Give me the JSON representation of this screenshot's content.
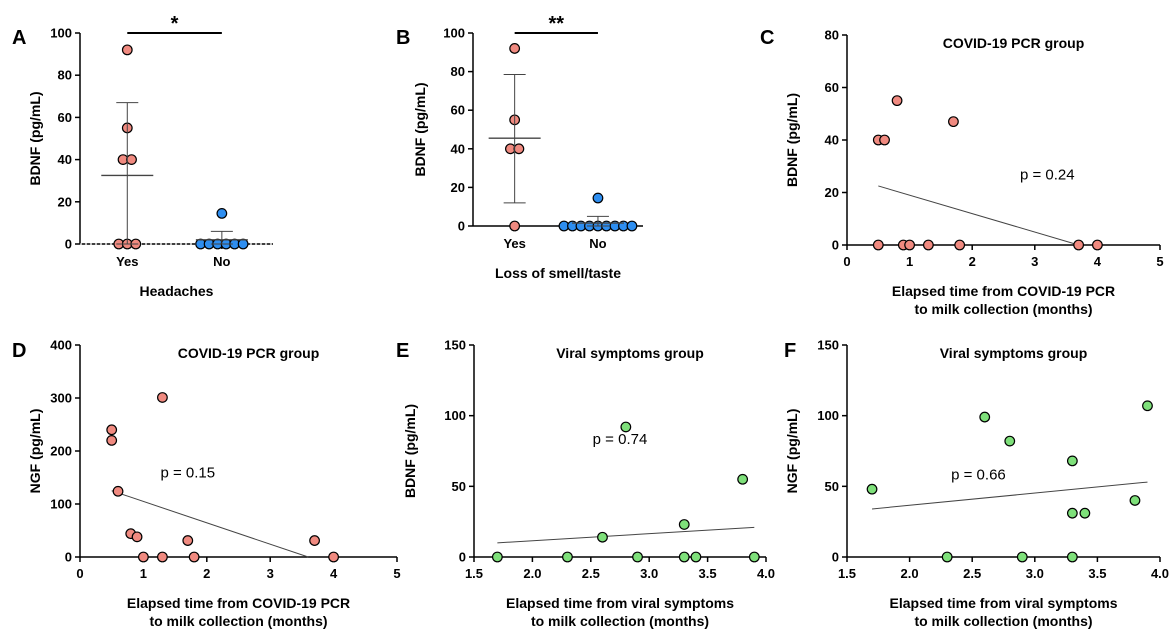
{
  "colors": {
    "red": "#f08a80",
    "blue": "#2e8ef0",
    "green": "#7ee07a",
    "stroke": "#000000",
    "line": "#444444"
  },
  "chart_data": [
    {
      "panel": "A",
      "type": "scatter",
      "categories": [
        "Yes",
        "No"
      ],
      "xlabel": "Headaches",
      "ylabel": "BDNF (pg/mL)",
      "ylim": [
        0,
        100
      ],
      "yticks": [
        "0",
        "20",
        "40",
        "60",
        "80",
        "100"
      ],
      "groups": [
        {
          "category": "Yes",
          "color": "#f08a80",
          "values": [
            92,
            55,
            40,
            40,
            0,
            0,
            0
          ],
          "mean": 32.5,
          "sd_upper": 67,
          "sd_lower": 0
        },
        {
          "category": "No",
          "color": "#2e8ef0",
          "values": [
            14.5,
            0,
            0,
            0,
            0,
            0,
            0
          ],
          "mean": 2,
          "sd_upper": 6,
          "sd_lower": 0
        }
      ],
      "significance": "*"
    },
    {
      "panel": "B",
      "type": "scatter",
      "categories": [
        "Yes",
        "No"
      ],
      "xlabel": "Loss of smell/taste",
      "ylabel": "BDNF (pg/mL)",
      "ylim": [
        0,
        100
      ],
      "yticks": [
        "0",
        "20",
        "40",
        "60",
        "80",
        "100"
      ],
      "groups": [
        {
          "category": "Yes",
          "color": "#f08a80",
          "values": [
            92,
            55,
            40,
            40,
            0
          ],
          "mean": 45.5,
          "sd_upper": 78.5,
          "sd_lower": 12
        },
        {
          "category": "No",
          "color": "#2e8ef0",
          "values": [
            14.5,
            0,
            0,
            0,
            0,
            0,
            0,
            0,
            0,
            0
          ],
          "mean": 1.5,
          "sd_upper": 5,
          "sd_lower": 0
        }
      ],
      "significance": "**"
    },
    {
      "panel": "C",
      "type": "scatter",
      "title": "COVID-19 PCR group",
      "xlabel": [
        "Elapsed time from COVID-19 PCR",
        "to milk collection (months)"
      ],
      "ylabel": "BDNF (pg/mL)",
      "xlim": [
        0,
        5
      ],
      "ylim": [
        0,
        80
      ],
      "xticks": [
        "0",
        "1",
        "2",
        "3",
        "4",
        "5"
      ],
      "yticks": [
        "0",
        "20",
        "40",
        "60",
        "80"
      ],
      "color": "#f08a80",
      "x": [
        0.5,
        0.6,
        0.8,
        1.7,
        0.5,
        0.9,
        1.0,
        1.3,
        1.8,
        3.7,
        4.0
      ],
      "y": [
        40,
        40,
        55,
        47,
        0,
        0,
        0,
        0,
        0,
        0,
        0
      ],
      "fit": {
        "x": [
          0.5,
          3.7
        ],
        "y": [
          22.5,
          0
        ]
      },
      "annotation": "p = 0.24"
    },
    {
      "panel": "D",
      "type": "scatter",
      "title": "COVID-19 PCR group",
      "xlabel": [
        "Elapsed time from COVID-19 PCR",
        "to milk collection (months)"
      ],
      "ylabel": "NGF (pg/mL)",
      "xlim": [
        0,
        5
      ],
      "ylim": [
        0,
        400
      ],
      "xticks": [
        "0",
        "1",
        "2",
        "3",
        "4",
        "5"
      ],
      "yticks": [
        "0",
        "100",
        "200",
        "300",
        "400"
      ],
      "color": "#f08a80",
      "x": [
        0.5,
        0.5,
        0.6,
        0.8,
        0.9,
        1.0,
        1.3,
        1.3,
        1.7,
        1.8,
        3.7,
        4.0
      ],
      "y": [
        240,
        220,
        124,
        44,
        38,
        0,
        301,
        0,
        31,
        0,
        31,
        0
      ],
      "fit": {
        "x": [
          0.5,
          3.6
        ],
        "y": [
          125,
          0
        ]
      },
      "annotation": "p = 0.15"
    },
    {
      "panel": "E",
      "type": "scatter",
      "title": "Viral symptoms group",
      "xlabel": [
        "Elapsed time from viral symptoms",
        "to milk collection (months)"
      ],
      "ylabel": "BDNF (pg/mL)",
      "xlim": [
        1.5,
        4.0
      ],
      "ylim": [
        0,
        150
      ],
      "xticks": [
        "1.5",
        "2.0",
        "2.5",
        "3.0",
        "3.5",
        "4.0"
      ],
      "yticks": [
        "0",
        "50",
        "100",
        "150"
      ],
      "color": "#7ee07a",
      "x": [
        1.7,
        2.3,
        2.6,
        2.8,
        2.9,
        3.3,
        3.3,
        3.4,
        3.8,
        3.9
      ],
      "y": [
        0,
        0,
        14,
        92,
        0,
        23,
        0,
        0,
        55,
        0
      ],
      "fit": {
        "x": [
          1.7,
          3.9
        ],
        "y": [
          10,
          21
        ]
      },
      "annotation": "p = 0.74"
    },
    {
      "panel": "F",
      "type": "scatter",
      "title": "Viral symptoms group",
      "xlabel": [
        "Elapsed time from viral symptoms",
        "to milk collection (months)"
      ],
      "ylabel": "NGF (pg/mL)",
      "xlim": [
        1.5,
        4.0
      ],
      "ylim": [
        0,
        150
      ],
      "xticks": [
        "1.5",
        "2.0",
        "2.5",
        "3.0",
        "3.5",
        "4.0"
      ],
      "yticks": [
        "0",
        "50",
        "100",
        "150"
      ],
      "color": "#7ee07a",
      "x": [
        1.7,
        2.3,
        2.6,
        2.8,
        2.9,
        3.3,
        3.3,
        3.3,
        3.4,
        3.8,
        3.9
      ],
      "y": [
        48,
        0,
        99,
        82,
        0,
        68,
        31,
        0,
        31,
        40,
        107
      ],
      "fit": {
        "x": [
          1.7,
          3.9
        ],
        "y": [
          34,
          53
        ]
      },
      "annotation": "p = 0.66"
    }
  ]
}
